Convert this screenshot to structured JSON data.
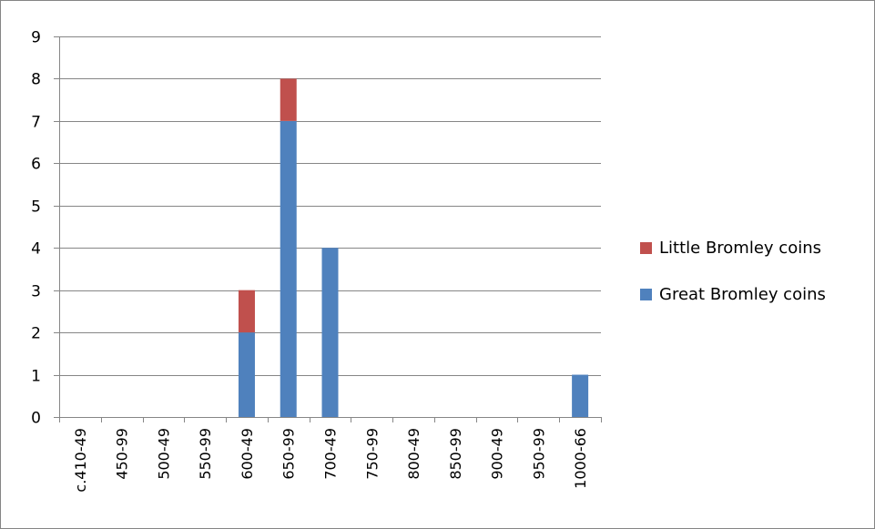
{
  "chart_data": {
    "type": "bar",
    "stacked": true,
    "title": "",
    "xlabel": "",
    "ylabel": "",
    "ylim": [
      0,
      9
    ],
    "yticks": [
      0,
      1,
      2,
      3,
      4,
      5,
      6,
      7,
      8,
      9
    ],
    "categories": [
      "c.410-49",
      "450-99",
      "500-49",
      "550-99",
      "600-49",
      "650-99",
      "700-49",
      "750-99",
      "800-49",
      "850-99",
      "900-49",
      "950-99",
      "1000-66"
    ],
    "series": [
      {
        "name": "Great Bromley coins",
        "color": "#4f81bd",
        "values": [
          0,
          0,
          0,
          0,
          2,
          7,
          4,
          0,
          0,
          0,
          0,
          0,
          1
        ]
      },
      {
        "name": "Little Bromley coins",
        "color": "#c0504d",
        "values": [
          0,
          0,
          0,
          0,
          1,
          1,
          0,
          0,
          0,
          0,
          0,
          0,
          0
        ]
      }
    ],
    "legend": {
      "position": "right",
      "order": [
        "Little Bromley coins",
        "Great Bromley coins"
      ]
    },
    "grid": true
  }
}
